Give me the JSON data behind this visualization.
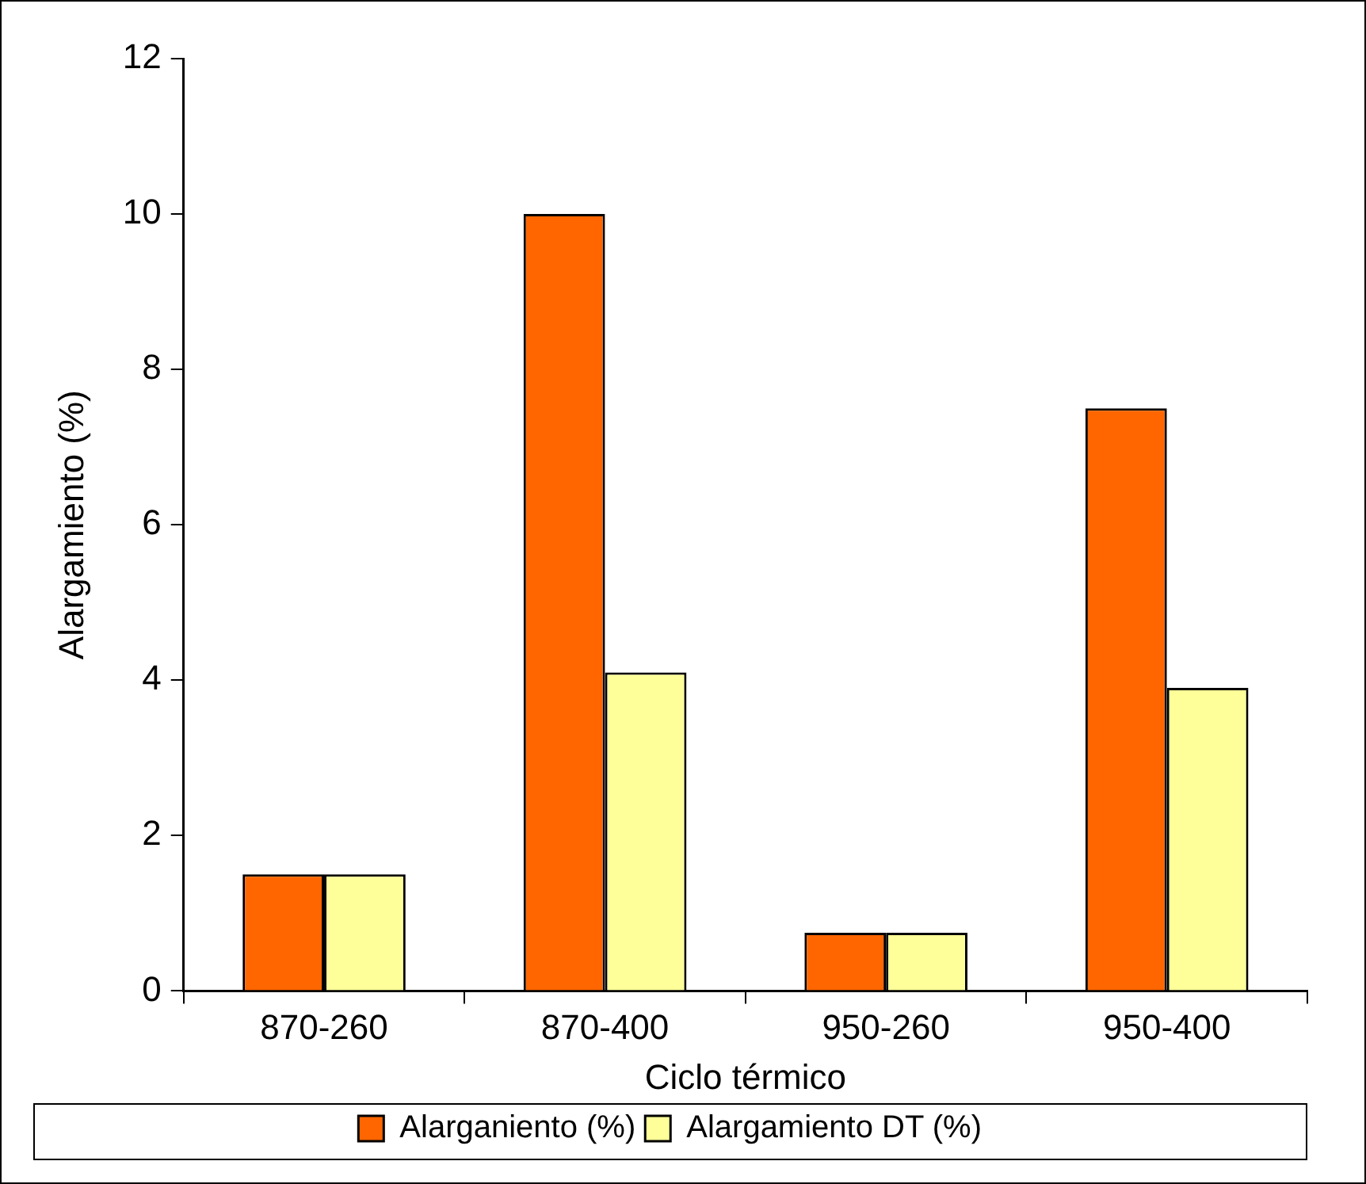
{
  "chart_data": {
    "type": "bar",
    "xlabel": "Ciclo térmico",
    "ylabel": "Alargamiento (%)",
    "categories": [
      "870-260",
      "870-400",
      "950-260",
      "950-400"
    ],
    "series": [
      {
        "name": "Alarganiento (%)",
        "color": "#ff6600",
        "values": [
          1.5,
          10,
          0.75,
          7.5
        ]
      },
      {
        "name": "Alargamiento DT (%)",
        "color": "#ffff99",
        "values": [
          1.5,
          4.1,
          0.75,
          3.9
        ]
      }
    ],
    "ylim": [
      0,
      12
    ],
    "yticks": [
      0,
      2,
      4,
      6,
      8,
      10,
      12
    ],
    "grid": false,
    "legend": "bottom"
  }
}
